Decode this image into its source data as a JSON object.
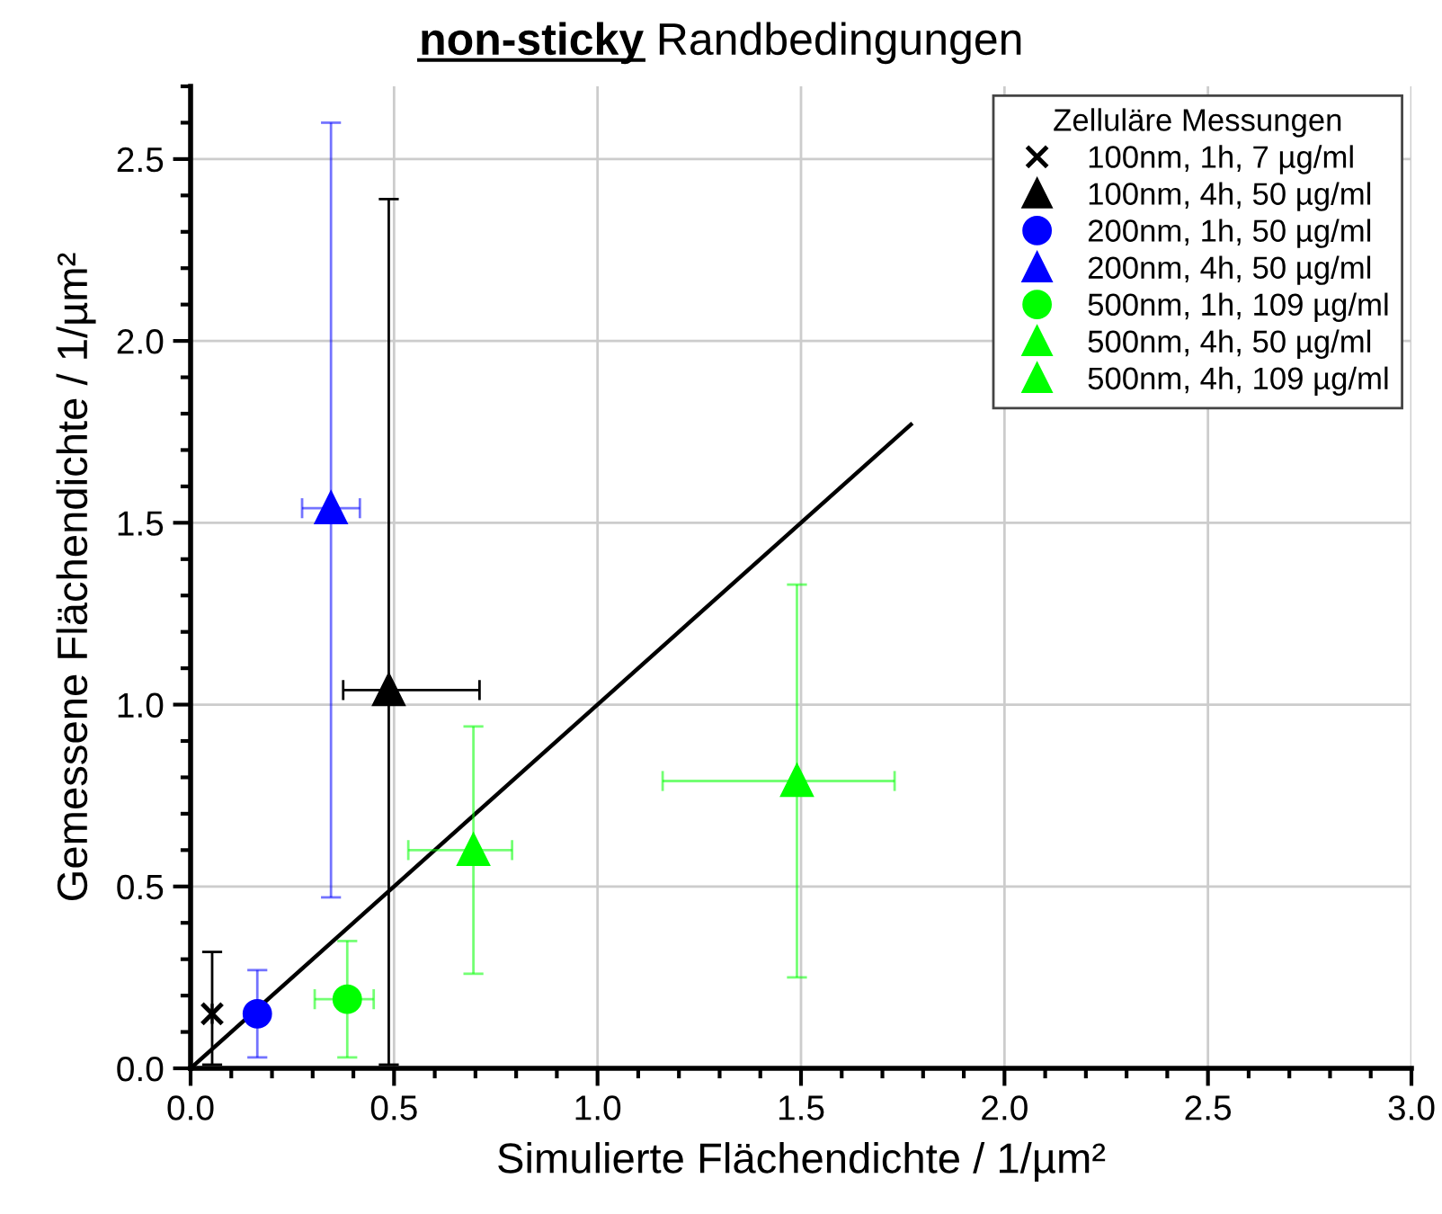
{
  "chart_data": {
    "type": "scatter",
    "title": "non-sticky Randbedingungen",
    "xlabel": "Simulierte Flächendichte / 1/µm²",
    "ylabel": "Gemessene Flächendichte / 1/µm²",
    "legend_title": "Zelluläre Messungen",
    "xlim": [
      0,
      3.0
    ],
    "ylim": [
      0,
      2.7
    ],
    "xticks": [
      {
        "value": 0,
        "label": "0.0"
      },
      0.5,
      {
        "value": 1,
        "label": "1.0"
      },
      1.5,
      {
        "value": 2,
        "label": "2.0"
      },
      2.5,
      {
        "value": 3,
        "label": "3.0"
      }
    ],
    "yticks": [
      {
        "value": 0,
        "label": "0.0"
      },
      0.5,
      {
        "value": 1,
        "label": "1.0"
      },
      1.5,
      {
        "value": 2,
        "label": "2.0"
      },
      2.5
    ],
    "grid": true,
    "legend": "top right",
    "series": [
      {
        "name": "100nm, 1h, 7 µg/ml",
        "color": "#000000",
        "marker": "cross",
        "x": [
          0.053
        ],
        "values": [
          0.15
        ],
        "errors": [
          [
            0.01,
            0.32
          ]
        ],
        "xerrors": [
          null
        ]
      },
      {
        "name": "100nm, 4h, 50 µg/ml",
        "color": "#000000",
        "marker": "triangle",
        "x": [
          0.487
        ],
        "values": [
          1.04
        ],
        "errors": [
          [
            0.01,
            2.39
          ]
        ],
        "xerrors": [
          [
            0.375,
            0.71
          ]
        ]
      },
      {
        "name": "200nm, 1h, 50 µg/ml",
        "color": "#0000ff",
        "marker": "circle",
        "x": [
          0.164
        ],
        "values": [
          0.15
        ],
        "errors": [
          [
            0.03,
            0.27
          ]
        ],
        "xerrors": [
          null
        ]
      },
      {
        "name": "200nm, 4h, 50 µg/ml",
        "color": "#0000ff",
        "marker": "triangle",
        "x": [
          0.345
        ],
        "values": [
          1.54
        ],
        "errors": [
          [
            0.47,
            2.6
          ]
        ],
        "xerrors": [
          [
            0.274,
            0.416
          ]
        ]
      },
      {
        "name": "500nm, 1h, 109 µg/ml",
        "color": "#00ff00",
        "marker": "circle",
        "x": [
          0.385
        ],
        "values": [
          0.19
        ],
        "errors": [
          [
            0.03,
            0.35
          ]
        ],
        "xerrors": [
          [
            0.305,
            0.45
          ]
        ]
      },
      {
        "name": "500nm, 4h, 50 µg/ml",
        "color": "#00ff00",
        "marker": "triangle",
        "x": [
          0.695
        ],
        "values": [
          0.6
        ],
        "errors": [
          [
            0.26,
            0.94
          ]
        ],
        "xerrors": [
          [
            0.535,
            0.79
          ]
        ]
      },
      {
        "name": "500nm, 4h, 109 µg/ml",
        "color": "#00ff00",
        "marker": "triangle",
        "x": [
          1.49
        ],
        "values": [
          0.79
        ],
        "errors": [
          [
            0.25,
            1.33
          ]
        ],
        "xerrors": [
          [
            1.16,
            1.73
          ]
        ]
      },
      {
        "type": "line",
        "color": "#000000",
        "x": [
          0,
          1.77
        ],
        "values": [
          0,
          1.77
        ]
      }
    ]
  }
}
